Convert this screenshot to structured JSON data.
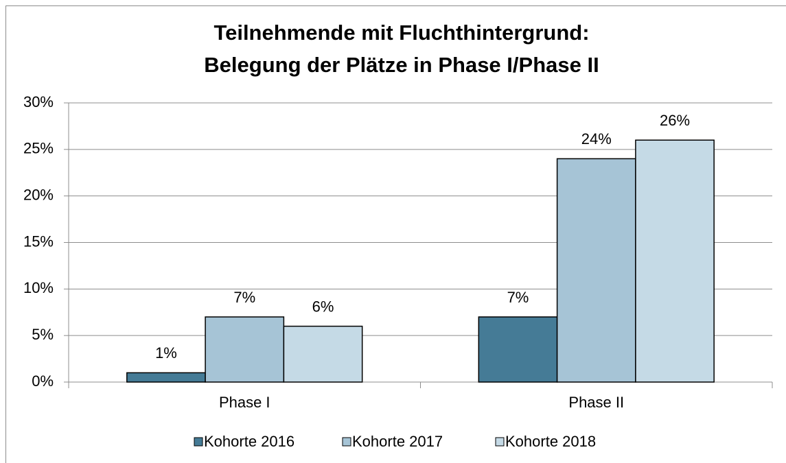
{
  "chart_data": {
    "type": "bar",
    "title": [
      "Teilnehmende mit Fluchthintergrund:",
      "Belegung der Plätze in Phase I/Phase II"
    ],
    "categories": [
      "Phase I",
      "Phase II"
    ],
    "series": [
      {
        "name": "Kohorte 2016",
        "color": "#457b96",
        "values": [
          1,
          7
        ],
        "value_labels": [
          "1%",
          "7%"
        ]
      },
      {
        "name": "Kohorte 2017",
        "color": "#a6c4d6",
        "values": [
          7,
          24
        ],
        "value_labels": [
          "7%",
          "24%"
        ]
      },
      {
        "name": "Kohorte 2018",
        "color": "#c5dae6",
        "values": [
          6,
          26
        ],
        "value_labels": [
          "6%",
          "26%"
        ]
      }
    ],
    "ylim": [
      0,
      30
    ],
    "yticks": [
      {
        "value": 0,
        "label": "0%"
      },
      {
        "value": 5,
        "label": "5%"
      },
      {
        "value": 10,
        "label": "10%"
      },
      {
        "value": 15,
        "label": "15%"
      },
      {
        "value": 20,
        "label": "20%"
      },
      {
        "value": 25,
        "label": "25%"
      },
      {
        "value": 30,
        "label": "30%"
      }
    ],
    "grid": true,
    "legend": "bottom"
  }
}
